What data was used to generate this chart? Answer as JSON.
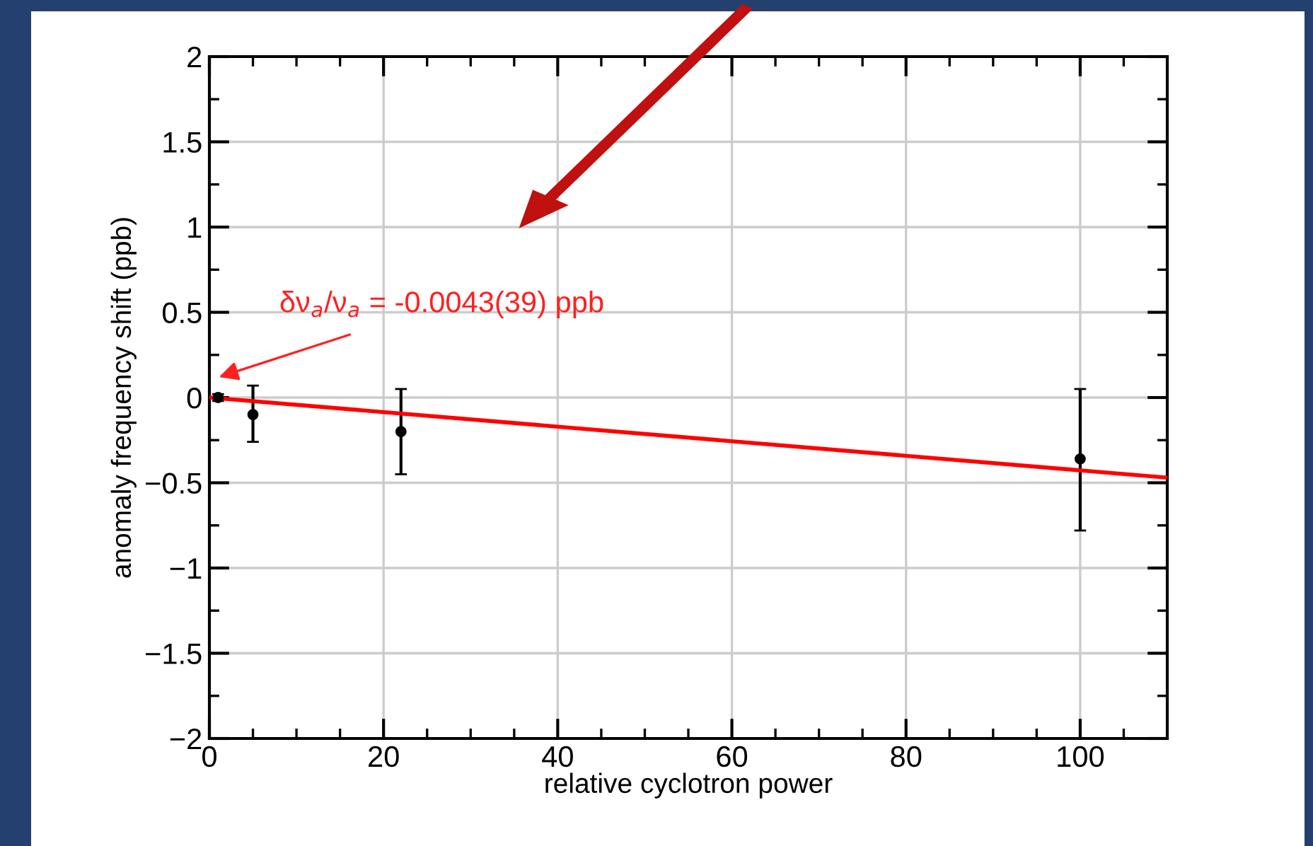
{
  "chart_data": {
    "type": "scatter",
    "xlabel": "relative cyclotron power",
    "ylabel": "anomaly frequency shift (ppb)",
    "series": [
      {
        "color": "#000000",
        "x": [
          1,
          5,
          22,
          100
        ],
        "values": [
          0,
          -0.1,
          -0.2,
          -0.36
        ],
        "errors": [
          0.02,
          [
            -0.26,
            0.07
          ],
          [
            -0.45,
            0.05
          ],
          [
            -0.78,
            0.05
          ]
        ],
        "marker": "circle"
      },
      {
        "type": "line",
        "color": "#ff0000",
        "x": [
          0,
          110
        ],
        "values": [
          0,
          -0.47
        ],
        "marker": "none",
        "line_style": "solid"
      }
    ],
    "annotations": [
      "δν$_{a}$/ν$_{a}$ = -0.0043(39) ppb"
    ],
    "xlim": [
      0,
      110
    ],
    "xticks": [
      0,
      20,
      40,
      60,
      80,
      100
    ],
    "ylim": [
      -2,
      2
    ],
    "yticks": [
      {
        "value": -2,
        "label": "−2"
      },
      {
        "value": -1.5,
        "label": "−1.5"
      },
      {
        "value": -1,
        "label": "−1"
      },
      {
        "value": -0.5,
        "label": "−0.5"
      },
      0,
      0.5,
      1,
      1.5,
      2
    ],
    "grid": true
  }
}
